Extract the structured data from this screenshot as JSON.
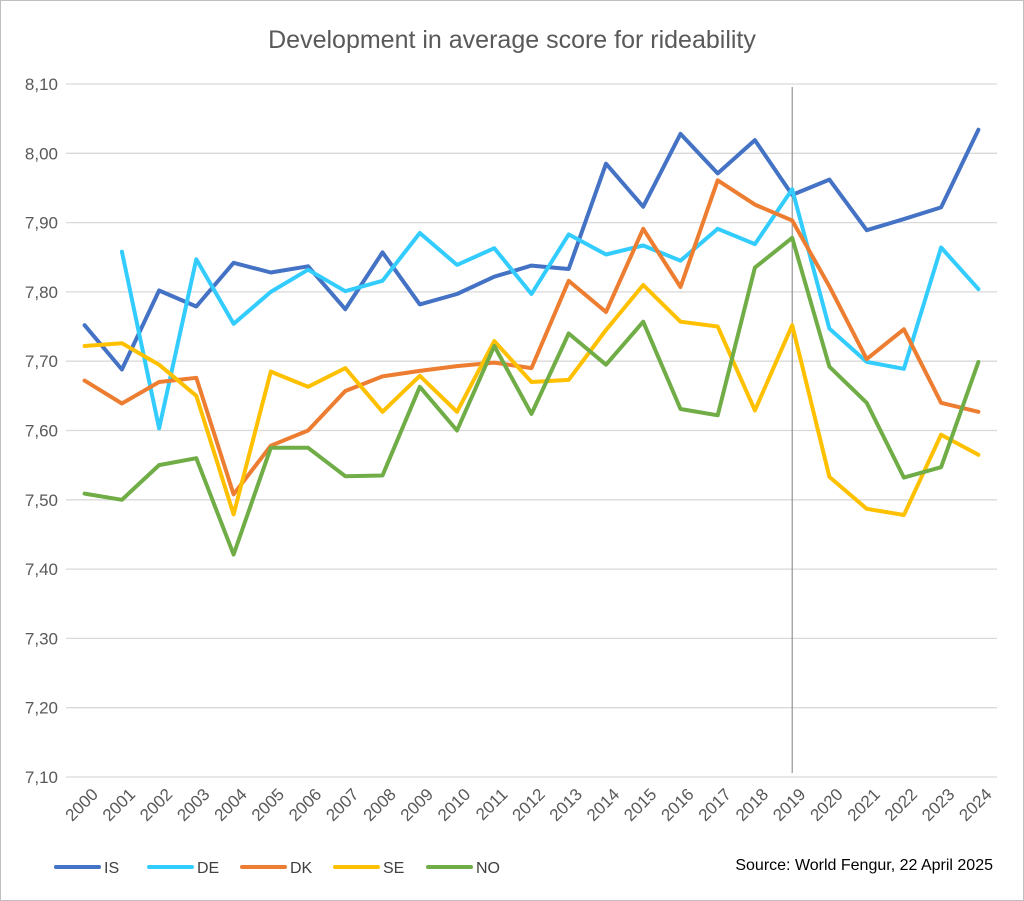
{
  "chart_data": {
    "type": "line",
    "title": "Development in average score for rideability",
    "xlabel": "",
    "ylabel": "",
    "categories": [
      "2000",
      "2001",
      "2002",
      "2003",
      "2004",
      "2005",
      "2006",
      "2007",
      "2008",
      "2009",
      "2010",
      "2011",
      "2012",
      "2013",
      "2014",
      "2015",
      "2016",
      "2017",
      "2018",
      "2019",
      "2020",
      "2021",
      "2022",
      "2023",
      "2024"
    ],
    "ylim": [
      7.1,
      8.1
    ],
    "yticks": [
      "7,10",
      "7,20",
      "7,30",
      "7,40",
      "7,50",
      "7,60",
      "7,70",
      "7,80",
      "7,90",
      "8,00",
      "8,10"
    ],
    "grid": true,
    "legend_position": "bottom-left",
    "reference_line_at": "2019",
    "series": [
      {
        "name": "IS",
        "color": "#4472C4",
        "values": [
          7.752,
          7.688,
          7.802,
          7.779,
          7.842,
          7.828,
          7.837,
          7.775,
          7.857,
          7.782,
          7.797,
          7.822,
          7.838,
          7.833,
          7.985,
          7.923,
          8.028,
          7.971,
          8.019,
          7.94,
          7.962,
          7.889,
          7.905,
          7.922,
          8.034
        ]
      },
      {
        "name": "DE",
        "color": "#33CCFF",
        "values": [
          null,
          7.858,
          7.603,
          7.847,
          7.754,
          7.8,
          7.832,
          7.801,
          7.816,
          7.885,
          7.839,
          7.863,
          7.797,
          7.883,
          7.854,
          7.867,
          7.845,
          7.891,
          7.869,
          7.948,
          7.747,
          7.699,
          7.689,
          7.864,
          7.804
        ]
      },
      {
        "name": "DK",
        "color": "#ED7D31",
        "values": [
          7.672,
          7.639,
          7.67,
          7.676,
          7.508,
          7.578,
          7.6,
          7.657,
          7.678,
          7.686,
          7.693,
          7.698,
          7.69,
          7.816,
          7.771,
          7.891,
          7.807,
          7.961,
          7.926,
          7.903,
          7.808,
          7.703,
          7.746,
          7.64,
          7.627
        ]
      },
      {
        "name": "SE",
        "color": "#FFC000",
        "values": [
          7.722,
          7.726,
          7.695,
          7.65,
          7.479,
          7.685,
          7.663,
          7.69,
          7.627,
          7.679,
          7.627,
          7.729,
          7.67,
          7.673,
          7.745,
          7.81,
          7.757,
          7.75,
          7.629,
          7.752,
          7.533,
          7.487,
          7.478,
          7.594,
          7.565
        ]
      },
      {
        "name": "NO",
        "color": "#70AD47",
        "values": [
          7.509,
          7.5,
          7.55,
          7.56,
          7.421,
          7.575,
          7.575,
          7.534,
          7.535,
          7.663,
          7.6,
          7.722,
          7.624,
          7.74,
          7.695,
          7.757,
          7.631,
          7.622,
          7.835,
          7.878,
          7.692,
          7.64,
          7.532,
          7.547,
          7.699
        ]
      }
    ]
  },
  "source_text": "Source: World Fengur, 22 April 2025"
}
